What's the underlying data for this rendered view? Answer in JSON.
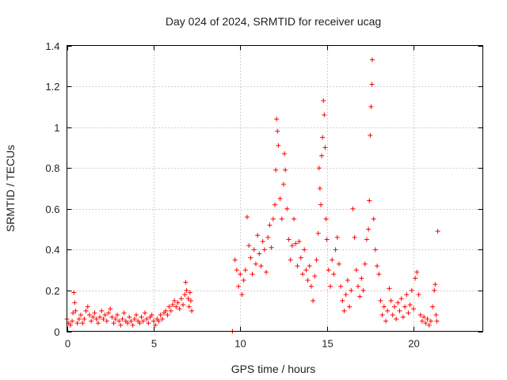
{
  "chart_data": {
    "type": "scatter",
    "title": "Day 024 of 2024, SRMTID for receiver ucag",
    "xlabel": "GPS time / hours",
    "ylabel": "SRMTID / TECUs",
    "xlim": [
      0,
      24
    ],
    "ylim": [
      0,
      1.4
    ],
    "x_ticks": [
      0,
      5,
      10,
      15,
      20
    ],
    "x_tick_labels": [
      "0",
      "5",
      "10",
      "15",
      "20"
    ],
    "y_ticks": [
      0,
      0.2,
      0.4,
      0.6,
      0.8,
      1.0,
      1.2,
      1.4
    ],
    "y_tick_labels": [
      "0",
      "0.2",
      "0.4",
      "0.6",
      "0.8",
      "1",
      "1.2",
      "1.4"
    ],
    "grid": true,
    "marker": "plus",
    "color": "#ff0000",
    "series": [
      {
        "name": "SRMTID",
        "points": [
          [
            0.0,
            0.06
          ],
          [
            0.1,
            0.04
          ],
          [
            0.2,
            0.03
          ],
          [
            0.3,
            0.05
          ],
          [
            0.35,
            0.09
          ],
          [
            0.4,
            0.19
          ],
          [
            0.45,
            0.14
          ],
          [
            0.5,
            0.1
          ],
          [
            0.6,
            0.04
          ],
          [
            0.7,
            0.06
          ],
          [
            0.8,
            0.08
          ],
          [
            0.9,
            0.04
          ],
          [
            1.0,
            0.06
          ],
          [
            1.1,
            0.1
          ],
          [
            1.2,
            0.12
          ],
          [
            1.3,
            0.08
          ],
          [
            1.4,
            0.05
          ],
          [
            1.5,
            0.07
          ],
          [
            1.6,
            0.09
          ],
          [
            1.7,
            0.06
          ],
          [
            1.8,
            0.04
          ],
          [
            1.9,
            0.07
          ],
          [
            2.0,
            0.1
          ],
          [
            2.1,
            0.06
          ],
          [
            2.2,
            0.08
          ],
          [
            2.3,
            0.05
          ],
          [
            2.4,
            0.09
          ],
          [
            2.5,
            0.11
          ],
          [
            2.6,
            0.07
          ],
          [
            2.7,
            0.04
          ],
          [
            2.8,
            0.06
          ],
          [
            2.9,
            0.08
          ],
          [
            3.0,
            0.05
          ],
          [
            3.1,
            0.03
          ],
          [
            3.2,
            0.06
          ],
          [
            3.3,
            0.09
          ],
          [
            3.4,
            0.05
          ],
          [
            3.5,
            0.04
          ],
          [
            3.6,
            0.07
          ],
          [
            3.7,
            0.05
          ],
          [
            3.8,
            0.03
          ],
          [
            3.9,
            0.06
          ],
          [
            4.0,
            0.08
          ],
          [
            4.1,
            0.05
          ],
          [
            4.2,
            0.04
          ],
          [
            4.3,
            0.07
          ],
          [
            4.4,
            0.05
          ],
          [
            4.5,
            0.09
          ],
          [
            4.6,
            0.06
          ],
          [
            4.7,
            0.04
          ],
          [
            4.8,
            0.07
          ],
          [
            4.9,
            0.08
          ],
          [
            5.0,
            0.05
          ],
          [
            5.1,
            0.03
          ],
          [
            5.2,
            0.06
          ],
          [
            5.3,
            0.05
          ],
          [
            5.4,
            0.08
          ],
          [
            5.5,
            0.06
          ],
          [
            5.6,
            0.09
          ],
          [
            5.7,
            0.1
          ],
          [
            5.8,
            0.08
          ],
          [
            5.9,
            0.12
          ],
          [
            6.0,
            0.1
          ],
          [
            6.1,
            0.13
          ],
          [
            6.2,
            0.15
          ],
          [
            6.3,
            0.12
          ],
          [
            6.4,
            0.14
          ],
          [
            6.5,
            0.11
          ],
          [
            6.6,
            0.16
          ],
          [
            6.7,
            0.13
          ],
          [
            6.8,
            0.18
          ],
          [
            6.85,
            0.24
          ],
          [
            6.9,
            0.2
          ],
          [
            7.0,
            0.16
          ],
          [
            7.05,
            0.12
          ],
          [
            7.1,
            0.19
          ],
          [
            7.15,
            0.15
          ],
          [
            7.2,
            0.1
          ],
          [
            9.55,
            0.0
          ],
          [
            9.7,
            0.35
          ],
          [
            9.8,
            0.3
          ],
          [
            9.9,
            0.22
          ],
          [
            10.0,
            0.28
          ],
          [
            10.1,
            0.18
          ],
          [
            10.2,
            0.25
          ],
          [
            10.3,
            0.3
          ],
          [
            10.4,
            0.56
          ],
          [
            10.5,
            0.42
          ],
          [
            10.6,
            0.36
          ],
          [
            10.7,
            0.28
          ],
          [
            10.8,
            0.4
          ],
          [
            10.9,
            0.33
          ],
          [
            11.0,
            0.47
          ],
          [
            11.1,
            0.38
          ],
          [
            11.2,
            0.32
          ],
          [
            11.3,
            0.44
          ],
          [
            11.4,
            0.4
          ],
          [
            11.5,
            0.29
          ],
          [
            11.6,
            0.46
          ],
          [
            11.7,
            0.52
          ],
          [
            11.8,
            0.41
          ],
          [
            11.9,
            0.55
          ],
          [
            12.0,
            0.62
          ],
          [
            12.05,
            0.79
          ],
          [
            12.1,
            1.04
          ],
          [
            12.15,
            0.98
          ],
          [
            12.2,
            0.91
          ],
          [
            12.3,
            0.65
          ],
          [
            12.4,
            0.55
          ],
          [
            12.5,
            0.72
          ],
          [
            12.55,
            0.87
          ],
          [
            12.6,
            0.79
          ],
          [
            12.7,
            0.6
          ],
          [
            12.8,
            0.45
          ],
          [
            12.9,
            0.35
          ],
          [
            13.0,
            0.42
          ],
          [
            13.1,
            0.55
          ],
          [
            13.2,
            0.43
          ],
          [
            13.3,
            0.32
          ],
          [
            13.4,
            0.44
          ],
          [
            13.5,
            0.36
          ],
          [
            13.6,
            0.28
          ],
          [
            13.7,
            0.4
          ],
          [
            13.8,
            0.3
          ],
          [
            13.9,
            0.25
          ],
          [
            14.0,
            0.32
          ],
          [
            14.1,
            0.22
          ],
          [
            14.2,
            0.15
          ],
          [
            14.3,
            0.27
          ],
          [
            14.4,
            0.35
          ],
          [
            14.5,
            0.48
          ],
          [
            14.55,
            0.8
          ],
          [
            14.6,
            0.7
          ],
          [
            14.65,
            0.62
          ],
          [
            14.7,
            0.86
          ],
          [
            14.75,
            0.95
          ],
          [
            14.8,
            1.13
          ],
          [
            14.85,
            1.06
          ],
          [
            14.9,
            0.9
          ],
          [
            14.95,
            0.55
          ],
          [
            15.0,
            0.45
          ],
          [
            15.1,
            0.3
          ],
          [
            15.2,
            0.22
          ],
          [
            15.3,
            0.35
          ],
          [
            15.4,
            0.28
          ],
          [
            15.5,
            0.4
          ],
          [
            15.6,
            0.46
          ],
          [
            15.7,
            0.33
          ],
          [
            15.8,
            0.22
          ],
          [
            15.9,
            0.15
          ],
          [
            16.0,
            0.1
          ],
          [
            16.1,
            0.18
          ],
          [
            16.2,
            0.25
          ],
          [
            16.3,
            0.12
          ],
          [
            16.4,
            0.2
          ],
          [
            16.5,
            0.6
          ],
          [
            16.6,
            0.46
          ],
          [
            16.7,
            0.3
          ],
          [
            16.8,
            0.22
          ],
          [
            16.9,
            0.17
          ],
          [
            17.0,
            0.26
          ],
          [
            17.1,
            0.2
          ],
          [
            17.2,
            0.33
          ],
          [
            17.3,
            0.45
          ],
          [
            17.4,
            0.5
          ],
          [
            17.45,
            0.64
          ],
          [
            17.5,
            0.96
          ],
          [
            17.55,
            1.1
          ],
          [
            17.6,
            1.21
          ],
          [
            17.62,
            1.33
          ],
          [
            17.7,
            0.55
          ],
          [
            17.8,
            0.4
          ],
          [
            17.9,
            0.32
          ],
          [
            18.0,
            0.28
          ],
          [
            18.1,
            0.15
          ],
          [
            18.2,
            0.08
          ],
          [
            18.3,
            0.12
          ],
          [
            18.4,
            0.05
          ],
          [
            18.5,
            0.1
          ],
          [
            18.6,
            0.21
          ],
          [
            18.7,
            0.15
          ],
          [
            18.8,
            0.08
          ],
          [
            18.9,
            0.12
          ],
          [
            19.0,
            0.06
          ],
          [
            19.1,
            0.14
          ],
          [
            19.2,
            0.1
          ],
          [
            19.3,
            0.16
          ],
          [
            19.4,
            0.07
          ],
          [
            19.5,
            0.12
          ],
          [
            19.6,
            0.18
          ],
          [
            19.7,
            0.09
          ],
          [
            19.8,
            0.13
          ],
          [
            19.9,
            0.2
          ],
          [
            20.0,
            0.11
          ],
          [
            20.1,
            0.26
          ],
          [
            20.2,
            0.29
          ],
          [
            20.3,
            0.18
          ],
          [
            20.4,
            0.08
          ],
          [
            20.5,
            0.05
          ],
          [
            20.6,
            0.07
          ],
          [
            20.7,
            0.04
          ],
          [
            20.8,
            0.06
          ],
          [
            20.9,
            0.03
          ],
          [
            21.0,
            0.05
          ],
          [
            21.1,
            0.12
          ],
          [
            21.2,
            0.2
          ],
          [
            21.25,
            0.23
          ],
          [
            21.3,
            0.08
          ],
          [
            21.35,
            0.05
          ],
          [
            21.4,
            0.49
          ]
        ]
      }
    ]
  }
}
